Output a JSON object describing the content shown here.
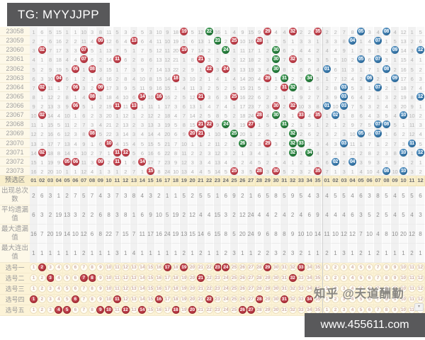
{
  "header": {
    "title": "TG: MYYJJPP"
  },
  "watermark": "知乎 @天道酬勤",
  "footer": {
    "url": "www.455611.com",
    "scroll_icon": "▾"
  },
  "colors": {
    "red_ball": "#b93a45",
    "green_ball": "#1f7d39",
    "blue_ball": "#2f77ae",
    "header_bar": "#58585a",
    "label_bg": "#fdf8e8",
    "zone_header_bg": "#f8eecb"
  },
  "trend": {
    "zone_header_label": "预选区",
    "front_headers": [
      "01",
      "02",
      "03",
      "04",
      "05",
      "06",
      "07",
      "08",
      "09",
      "10",
      "11",
      "12",
      "13",
      "14",
      "15",
      "16",
      "17",
      "18",
      "19",
      "20",
      "21",
      "22",
      "23",
      "24",
      "25",
      "26",
      "27",
      "28",
      "29",
      "30",
      "31",
      "32",
      "33",
      "34",
      "35"
    ],
    "back_headers": [
      "01",
      "02",
      "03",
      "04",
      "05",
      "06",
      "07",
      "08",
      "09",
      "10",
      "11",
      "12"
    ],
    "front_seed_miss": [
      1,
      6,
      5,
      15,
      1,
      1,
      10,
      3,
      8,
      11,
      5,
      3,
      2,
      5,
      3,
      10,
      9,
      18,
      0,
      5,
      12,
      0,
      16,
      1,
      4,
      9,
      15,
      9,
      0,
      4,
      4,
      0,
      2,
      2,
      0
    ],
    "back_seed_miss": [
      2,
      2,
      7,
      8,
      0,
      3,
      4,
      0,
      4,
      12,
      1,
      5
    ],
    "draws": [
      {
        "issue": "23058",
        "front": [
          [
            19,
            "red"
          ],
          [
            22,
            "green"
          ],
          [
            29,
            "red"
          ],
          [
            32,
            "red"
          ],
          [
            35,
            "red"
          ]
        ],
        "back": [
          5,
          8
        ]
      },
      {
        "issue": "23059",
        "front": [
          [
            9,
            "red"
          ],
          [
            13,
            "red"
          ],
          [
            23,
            "green"
          ],
          [
            25,
            "red"
          ],
          [
            28,
            "red"
          ]
        ],
        "back": [
          4,
          7
        ]
      },
      {
        "issue": "23060",
        "front": [
          [
            2,
            "red"
          ],
          [
            7,
            "red"
          ],
          [
            19,
            "red"
          ],
          [
            24,
            "green"
          ],
          [
            30,
            "green"
          ]
        ],
        "back": [
          9,
          12
        ]
      },
      {
        "issue": "23061",
        "front": [
          [
            7,
            "red"
          ],
          [
            11,
            "red"
          ],
          [
            21,
            "red"
          ],
          [
            30,
            "green"
          ],
          [
            32,
            "red"
          ]
        ],
        "back": [
          5,
          7
        ]
      },
      {
        "issue": "23062",
        "front": [
          [
            6,
            "red"
          ],
          [
            8,
            "red"
          ],
          [
            22,
            "red"
          ],
          [
            24,
            "red"
          ],
          [
            30,
            "green"
          ]
        ],
        "back": [
          1,
          8
        ]
      },
      {
        "issue": "23063",
        "front": [
          [
            4,
            "red"
          ],
          [
            18,
            "red"
          ],
          [
            29,
            "red"
          ],
          [
            31,
            "green"
          ],
          [
            34,
            "green"
          ]
        ],
        "back": [
          6,
          9
        ]
      },
      {
        "issue": "23064",
        "front": [
          [
            2,
            "red"
          ],
          [
            6,
            "red"
          ],
          [
            9,
            "red"
          ],
          [
            31,
            "red"
          ],
          [
            32,
            "green"
          ]
        ],
        "back": [
          3,
          7
        ]
      },
      {
        "issue": "23065",
        "front": [
          [
            8,
            "red"
          ],
          [
            14,
            "red"
          ],
          [
            16,
            "red"
          ],
          [
            21,
            "red"
          ],
          [
            25,
            "red"
          ]
        ],
        "back": [
          3,
          12
        ]
      },
      {
        "issue": "23066",
        "front": [
          [
            6,
            "red"
          ],
          [
            11,
            "red"
          ],
          [
            13,
            "red"
          ],
          [
            30,
            "red"
          ],
          [
            32,
            "red"
          ]
        ],
        "back": [
          1,
          3
        ]
      },
      {
        "issue": "23067",
        "front": [
          [
            2,
            "red"
          ],
          [
            28,
            "red"
          ],
          [
            30,
            "green"
          ],
          [
            33,
            "red"
          ],
          [
            35,
            "red"
          ]
        ],
        "back": [
          2,
          10
        ]
      },
      {
        "issue": "23068",
        "front": [
          [
            21,
            "red"
          ],
          [
            22,
            "red"
          ],
          [
            24,
            "green"
          ],
          [
            27,
            "red"
          ],
          [
            31,
            "green"
          ]
        ],
        "back": [
          7,
          8
        ]
      },
      {
        "issue": "23069",
        "front": [
          [
            8,
            "red"
          ],
          [
            20,
            "red"
          ],
          [
            21,
            "red"
          ],
          [
            25,
            "green"
          ],
          [
            32,
            "green"
          ]
        ],
        "back": [
          5,
          7
        ]
      },
      {
        "issue": "23070",
        "front": [
          [
            10,
            "red"
          ],
          [
            26,
            "green"
          ],
          [
            29,
            "red"
          ],
          [
            32,
            "green"
          ],
          [
            33,
            "green"
          ]
        ],
        "back": [
          3,
          11
        ]
      },
      {
        "issue": "23071",
        "front": [
          [
            2,
            "red"
          ],
          [
            11,
            "red"
          ],
          [
            12,
            "red"
          ],
          [
            32,
            "green"
          ],
          [
            34,
            "green"
          ]
        ],
        "back": [
          10,
          12
        ]
      },
      {
        "issue": "23072",
        "front": [
          [
            5,
            "red"
          ],
          [
            6,
            "red"
          ],
          [
            9,
            "red"
          ],
          [
            11,
            "red"
          ],
          [
            14,
            "red"
          ]
        ],
        "back": [
          2,
          4
        ]
      },
      {
        "issue": "23073",
        "front": [
          [
            15,
            "red"
          ],
          [
            25,
            "red"
          ],
          [
            28,
            "red"
          ],
          [
            30,
            "red"
          ],
          [
            35,
            "red"
          ]
        ],
        "back": [
          8,
          10
        ]
      }
    ],
    "stats": [
      {
        "label": "出现总次数",
        "front": [
          2,
          6,
          3,
          1,
          2,
          7,
          5,
          7,
          4,
          3,
          7,
          3,
          8,
          4,
          3,
          2,
          1,
          1,
          5,
          2,
          5,
          5,
          1,
          6,
          9,
          2,
          1,
          6,
          5,
          8,
          5,
          9,
          5,
          4,
          3
        ],
        "back": [
          4,
          5,
          5,
          4,
          6,
          3,
          8,
          5,
          4,
          5,
          5,
          6
        ]
      },
      {
        "label": "平均遗漏值",
        "front": [
          6,
          3,
          2,
          19,
          13,
          3,
          2,
          2,
          6,
          8,
          3,
          8,
          1,
          6,
          9,
          10,
          5,
          19,
          2,
          12,
          4,
          4,
          15,
          3,
          2,
          12,
          24,
          4,
          4,
          2,
          4,
          2,
          4,
          6,
          9
        ],
        "back": [
          4,
          4,
          4,
          6,
          3,
          5,
          2,
          5,
          4,
          5,
          4,
          3
        ]
      },
      {
        "label": "最大遗漏值",
        "front": [
          16,
          7,
          20,
          19,
          14,
          10,
          12,
          6,
          8,
          22,
          7,
          15,
          7,
          11,
          17,
          16,
          24,
          19,
          13,
          15,
          14,
          6,
          15,
          8,
          5,
          20,
          24,
          9,
          6,
          8,
          8,
          9,
          10,
          10,
          14
        ],
        "back": [
          11,
          10,
          12,
          12,
          7,
          10,
          4,
          8,
          10,
          20,
          12,
          8
        ]
      },
      {
        "label": "最大连出值",
        "front": [
          1,
          1,
          1,
          1,
          1,
          1,
          2,
          1,
          1,
          1,
          3,
          1,
          4,
          1,
          1,
          1,
          1,
          1,
          2,
          1,
          2,
          1,
          1,
          2,
          3,
          1,
          1,
          2,
          2,
          3,
          2,
          3,
          2,
          1,
          1
        ],
        "back": [
          2,
          1,
          3,
          1,
          2,
          1,
          2,
          1,
          1,
          1,
          2,
          1
        ]
      }
    ],
    "picks": [
      {
        "label": "选号一",
        "front": [
          2,
          17,
          19,
          23,
          24,
          29,
          33
        ],
        "back": []
      },
      {
        "label": "选号二",
        "front": [
          3,
          7,
          8,
          21,
          32
        ],
        "back": []
      },
      {
        "label": "选号三",
        "front": [],
        "back": []
      },
      {
        "label": "选号四",
        "front": [
          1,
          6,
          11,
          16,
          22,
          28,
          31,
          34
        ],
        "back": []
      },
      {
        "label": "选号五",
        "front": [
          4,
          5,
          9,
          10,
          12,
          14,
          18,
          20,
          26,
          27
        ],
        "back": []
      }
    ]
  }
}
